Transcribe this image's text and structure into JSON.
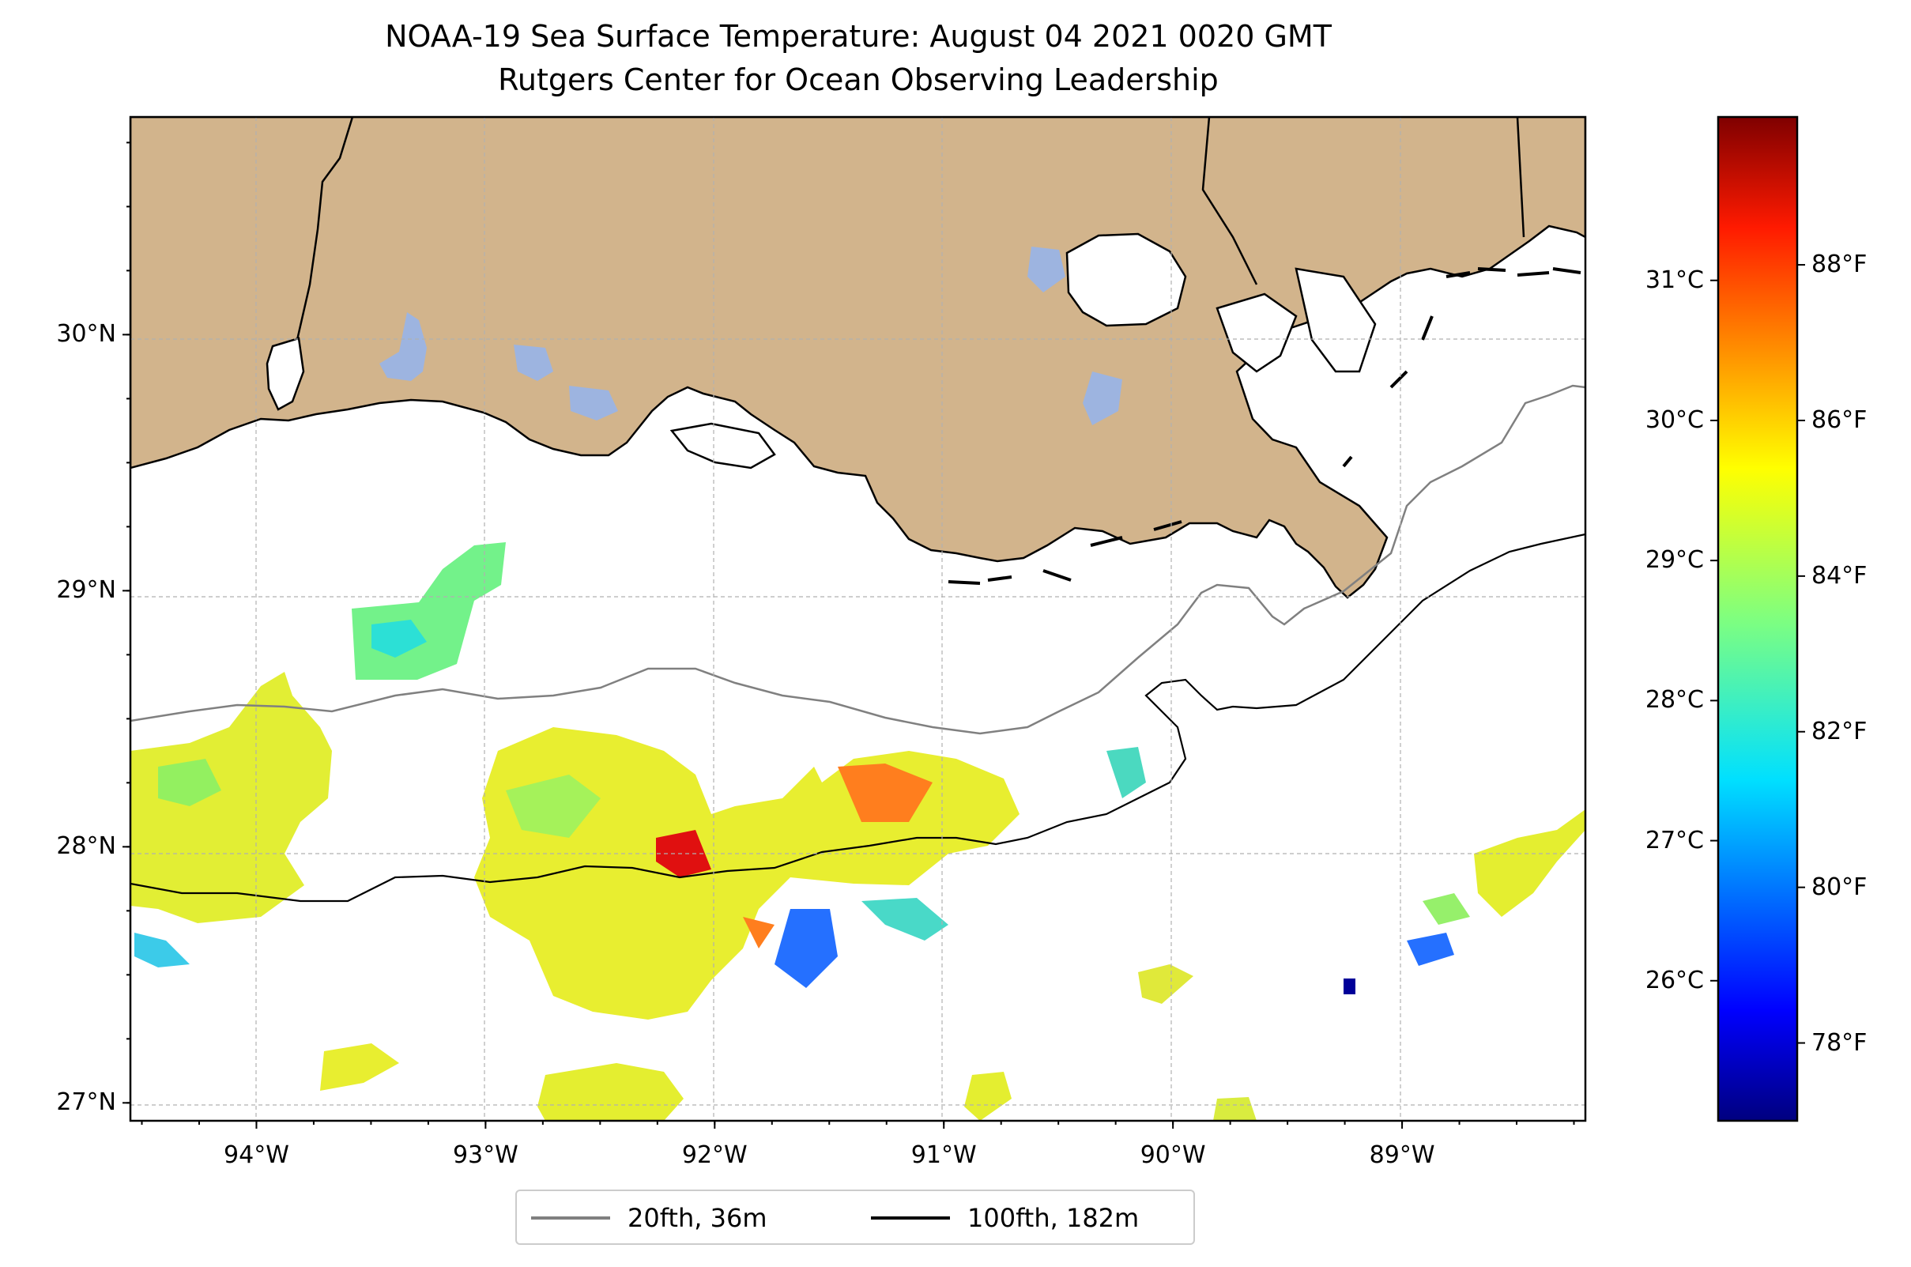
{
  "title": {
    "line1": "NOAA-19 Sea Surface Temperature: August 04 2021 0020 GMT",
    "line2": "Rutgers Center for Ocean Observing Leadership"
  },
  "map": {
    "lon_range": [
      -94.55,
      -88.2
    ],
    "lat_range": [
      26.93,
      30.85
    ],
    "lon_ticks": [
      {
        "value": -94,
        "label": "94°W"
      },
      {
        "value": -93,
        "label": "93°W"
      },
      {
        "value": -92,
        "label": "92°W"
      },
      {
        "value": -91,
        "label": "91°W"
      },
      {
        "value": -90,
        "label": "90°W"
      },
      {
        "value": -89,
        "label": "89°W"
      }
    ],
    "lat_ticks": [
      {
        "value": 27,
        "label": "27°N"
      },
      {
        "value": 28,
        "label": "28°N"
      },
      {
        "value": 29,
        "label": "29°N"
      },
      {
        "value": 30,
        "label": "30°N"
      }
    ],
    "gridlines": true,
    "land_color": "#d2b48c",
    "lake_color": "#9db4e0",
    "isobath_20_color": "#808080",
    "isobath_100_color": "#000000"
  },
  "colorbar": {
    "colormap": "jet",
    "range_f": [
      77.0,
      89.9
    ],
    "f_ticks": [
      {
        "value": 78,
        "label": "78°F"
      },
      {
        "value": 80,
        "label": "80°F"
      },
      {
        "value": 82,
        "label": "82°F"
      },
      {
        "value": 84,
        "label": "84°F"
      },
      {
        "value": 86,
        "label": "86°F"
      },
      {
        "value": 88,
        "label": "88°F"
      }
    ],
    "c_ticks": [
      {
        "value": 26,
        "label": "26°C"
      },
      {
        "value": 27,
        "label": "27°C"
      },
      {
        "value": 28,
        "label": "28°C"
      },
      {
        "value": 29,
        "label": "29°C"
      },
      {
        "value": 30,
        "label": "30°C"
      },
      {
        "value": 31,
        "label": "31°C"
      }
    ]
  },
  "legend": {
    "items": [
      {
        "label": "20fth, 36m",
        "color": "#808080"
      },
      {
        "label": "100fth, 182m",
        "color": "#000000"
      }
    ],
    "placement": "bottom-center"
  }
}
